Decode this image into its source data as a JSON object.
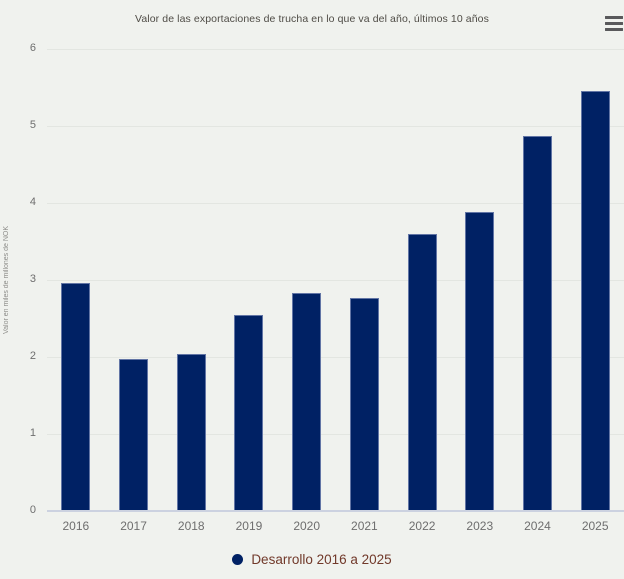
{
  "header": {
    "title": "Valor de las exportaciones de trucha en lo que va del año, últimos 10 años"
  },
  "menu": {
    "icon": "hamburger-icon"
  },
  "chart_data": {
    "type": "bar",
    "title": "Valor de las exportaciones de trucha en lo que va del año, últimos 10 años",
    "categories": [
      "2016",
      "2017",
      "2018",
      "2019",
      "2020",
      "2021",
      "2022",
      "2023",
      "2024",
      "2025"
    ],
    "values": [
      2.96,
      1.97,
      2.04,
      2.55,
      2.83,
      2.76,
      3.6,
      3.88,
      4.87,
      5.45
    ],
    "xlabel": "",
    "ylabel": "Valor en miles de millones de NOK",
    "ylim": [
      0,
      6
    ],
    "yticks": [
      0,
      1,
      2,
      3,
      4,
      5,
      6
    ],
    "grid": true,
    "legend": {
      "label": "Desarrollo 2016 a 2025",
      "position": "bottom",
      "marker": "circle-icon"
    },
    "colors": {
      "bar": "#002164",
      "background": "#f0f2ee",
      "gridline": "#e3e6e1",
      "axis_line": "#ccd2e0",
      "tick_text": "#6e6e6e",
      "title_text": "#4f4c46",
      "legend_text": "#71392a",
      "menu_icon": "#59595b"
    }
  }
}
